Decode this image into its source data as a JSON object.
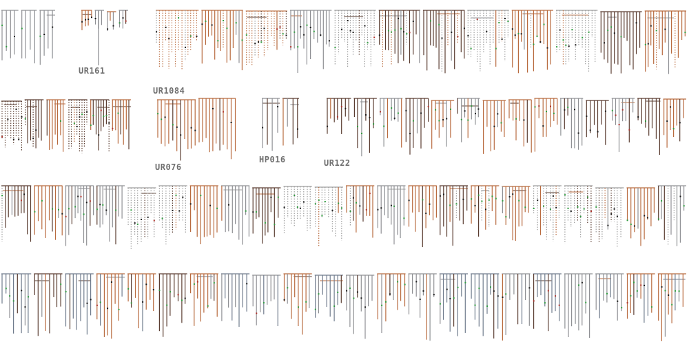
{
  "figure": {
    "type": "pedigree-diagrams",
    "colors": {
      "gray": "#8f9094",
      "rust": "#b86a3e",
      "dark": "#5a3c30",
      "gray_dotted": "#9d9d9d",
      "rust_dotted": "#c07a52",
      "green_marker": "#2e9e3e",
      "black_marker": "#1b1b1b",
      "red_marker": "#b0302a"
    },
    "labels": {
      "ur161": "UR161",
      "ur1084": "UR1084",
      "ur076": "UR076",
      "hp016": "HP016",
      "ur122": "UR122"
    },
    "pedigrees": [
      {
        "id": "ped-1",
        "style": [
          "gray"
        ],
        "lines": 14
      },
      {
        "id": "UR161",
        "label_key": "ur161",
        "style": [
          "rust",
          "dark",
          "gray"
        ],
        "lines": 14
      },
      {
        "id": "UR1084",
        "label_key": "ur1084",
        "style": [
          "gray",
          "rust",
          "dark",
          "gray_dotted",
          "rust_dotted"
        ],
        "lines": 170
      },
      {
        "id": "ped-4",
        "style": [
          "dark",
          "rust",
          "dark_dotted"
        ],
        "lines": 48
      },
      {
        "id": "UR076",
        "label_key": "ur076",
        "style": [
          "dark",
          "rust"
        ],
        "lines": 21
      },
      {
        "id": "HP016",
        "label_key": "hp016",
        "style": [
          "dark",
          "rust",
          "gray"
        ],
        "lines": 8
      },
      {
        "id": "UR122",
        "label_key": "ur122",
        "style": [
          "rust",
          "dark",
          "gray"
        ],
        "lines": 100
      },
      {
        "id": "ped-8",
        "style": [
          "rust",
          "dark",
          "gray",
          "gray_dotted"
        ],
        "lines": 210
      },
      {
        "id": "ped-9",
        "style": [
          "rust",
          "dark",
          "gray",
          "blue_gray"
        ],
        "lines": 190
      }
    ]
  }
}
